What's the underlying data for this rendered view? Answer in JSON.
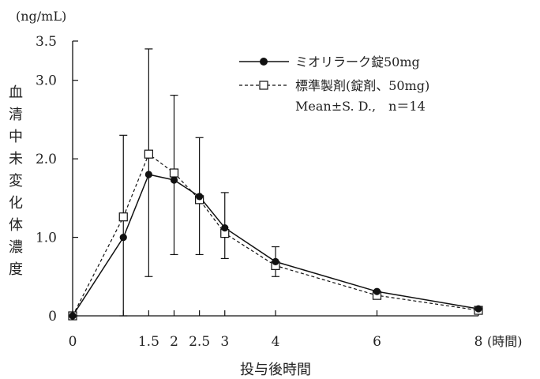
{
  "chart_data": {
    "type": "line",
    "y_unit": "(ng/mL)",
    "x_unit": "(時間)",
    "xlabel": "投与後時間",
    "ylabel": "血清中未変化体濃度",
    "x_ticks": [
      {
        "value": 0,
        "label": "0"
      },
      {
        "value": 1.5,
        "label": "1.5"
      },
      {
        "value": 2,
        "label": "2"
      },
      {
        "value": 2.5,
        "label": "2.5"
      },
      {
        "value": 3,
        "label": "3"
      },
      {
        "value": 4,
        "label": "4"
      },
      {
        "value": 6,
        "label": "6"
      },
      {
        "value": 8,
        "label": "8"
      }
    ],
    "y_ticks": [
      {
        "value": 0,
        "label": "0"
      },
      {
        "value": 1.0,
        "label": "1.0"
      },
      {
        "value": 2.0,
        "label": "2.0"
      },
      {
        "value": 3.0,
        "label": "3.0"
      },
      {
        "value": 3.5,
        "label": "3.5"
      }
    ],
    "xlim": [
      0,
      8
    ],
    "ylim": [
      0,
      3.5
    ],
    "legend_position": "top-right",
    "legend_note": "Mean±S. D.,　n＝14",
    "series": [
      {
        "name": "ミオリラーク錠50mg",
        "marker": "filled-circle",
        "line": "solid",
        "color": "#111111",
        "x": [
          0,
          1,
          1.5,
          2,
          2.5,
          3,
          4,
          6,
          8
        ],
        "y": [
          0,
          1.0,
          1.8,
          1.73,
          1.52,
          1.12,
          0.69,
          0.31,
          0.09
        ]
      },
      {
        "name": "標準製剤(錠剤、50mg)",
        "marker": "open-square",
        "line": "dashed",
        "color": "#111111",
        "x": [
          0,
          1,
          1.5,
          2,
          2.5,
          3,
          4,
          6,
          8
        ],
        "y": [
          0,
          1.26,
          2.06,
          1.82,
          1.48,
          1.05,
          0.64,
          0.26,
          0.07
        ]
      }
    ],
    "error_bars": [
      {
        "x": 1,
        "low": 0,
        "high": 2.3
      },
      {
        "x": 1.5,
        "low": 0.5,
        "high": 3.4
      },
      {
        "x": 2,
        "low": 0.78,
        "high": 2.81
      },
      {
        "x": 2.5,
        "low": 0.78,
        "high": 2.27
      },
      {
        "x": 3,
        "low": 0.73,
        "high": 1.57
      },
      {
        "x": 4,
        "low": 0.5,
        "high": 0.88
      }
    ]
  }
}
